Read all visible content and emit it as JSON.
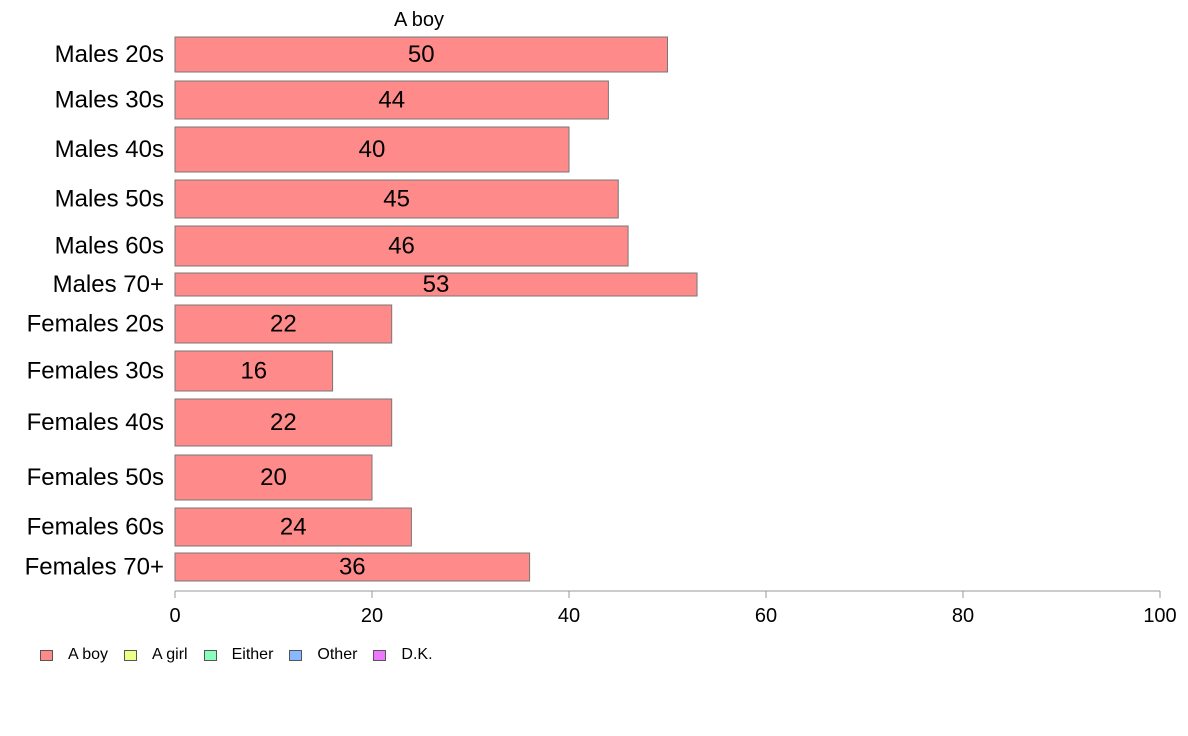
{
  "chart_data": {
    "type": "bar",
    "orientation": "horizontal",
    "title": "A boy",
    "categories": [
      "Males 20s",
      "Males 30s",
      "Males 40s",
      "Males 50s",
      "Males 60s",
      "Males 70+",
      "Females 20s",
      "Females 30s",
      "Females 40s",
      "Females 50s",
      "Females 60s",
      "Females 70+"
    ],
    "series": [
      {
        "name": "A boy",
        "color": "#ff8a8a",
        "values": [
          50,
          44,
          40,
          45,
          46,
          53,
          22,
          16,
          22,
          20,
          24,
          36
        ]
      }
    ],
    "data_labels": [
      "50",
      "44",
      "40",
      "45",
      "46",
      "53",
      "22",
      "16",
      "22",
      "20",
      "24",
      "36"
    ],
    "xlim": [
      0,
      100
    ],
    "xticks": [
      0,
      20,
      40,
      60,
      80,
      100
    ],
    "xtick_labels": [
      "0",
      "20",
      "40",
      "60",
      "80",
      "100"
    ],
    "grid": false,
    "legend": {
      "placement": "bottom-left",
      "items": [
        {
          "label": "A boy",
          "color": "#ff8a8a"
        },
        {
          "label": "A girl",
          "color": "#eeff88"
        },
        {
          "label": "Either",
          "color": "#88ffbb"
        },
        {
          "label": "Other",
          "color": "#88b8ff"
        },
        {
          "label": "D.K.",
          "color": "#ee77ff"
        }
      ]
    }
  }
}
